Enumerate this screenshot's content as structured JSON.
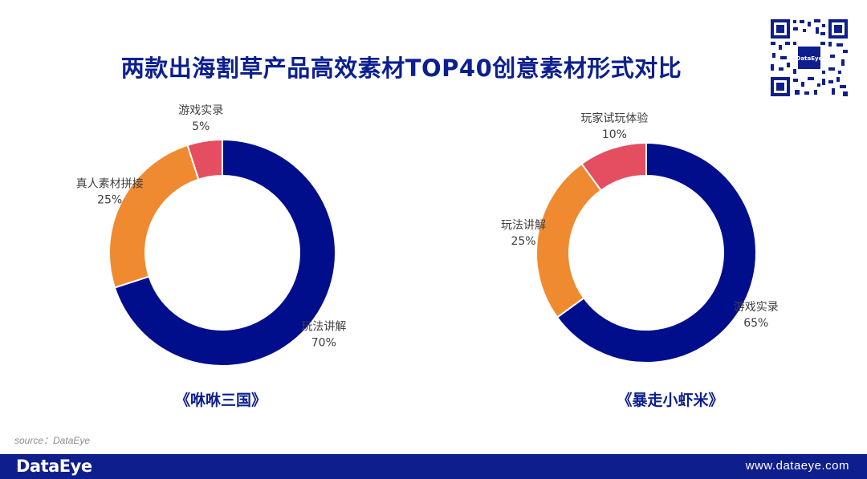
{
  "title": "两款出海割草产品高效素材TOP40创意素材形式对比",
  "qr_brand": "DataEye",
  "source": "source：DataEye",
  "footer": {
    "logo": "DataEye",
    "url": "www.dataeye.com"
  },
  "colors": {
    "navy": "#000e8c",
    "orange": "#f08a30",
    "red": "#e54d60",
    "title": "#0b1f8f",
    "footer_bg": "#0e1e8c"
  },
  "chart_data": [
    {
      "type": "pie",
      "donut": true,
      "name": "《咻咻三国》",
      "slices": [
        {
          "label": "游戏实录",
          "value": 5,
          "pct_label": "5%",
          "color": "#e54d60"
        },
        {
          "label": "真人素材拼接",
          "value": 25,
          "pct_label": "25%",
          "color": "#f08a30"
        },
        {
          "label": "玩法讲解",
          "value": 70,
          "pct_label": "70%",
          "color": "#000e8c"
        }
      ]
    },
    {
      "type": "pie",
      "donut": true,
      "name": "《暴走小虾米》",
      "slices": [
        {
          "label": "玩家试玩体验",
          "value": 10,
          "pct_label": "10%",
          "color": "#e54d60"
        },
        {
          "label": "玩法讲解",
          "value": 25,
          "pct_label": "25%",
          "color": "#f08a30"
        },
        {
          "label": "游戏实录",
          "value": 65,
          "pct_label": "65%",
          "color": "#000e8c"
        }
      ]
    }
  ]
}
